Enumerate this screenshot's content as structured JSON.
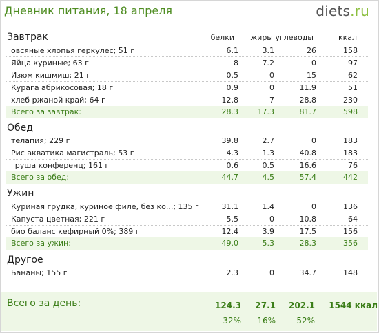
{
  "header": {
    "title": "Дневник питания, 18 апреля",
    "logo_main": "diets",
    "logo_dot": ".",
    "logo_tld": "ru"
  },
  "columns": {
    "protein": "белки",
    "fat": "жиры",
    "carbs": "углеводы",
    "kcal": "ккал"
  },
  "sections": [
    {
      "title": "Завтрак",
      "items": [
        {
          "name": "овсяные хлопья геркулес; 51 г",
          "protein": "6.1",
          "fat": "3.1",
          "carbs": "26",
          "kcal": "158"
        },
        {
          "name": "Яйца куриные; 63 г",
          "protein": "8",
          "fat": "7.2",
          "carbs": "0",
          "kcal": "97"
        },
        {
          "name": "Изюм кишмиш; 21 г",
          "protein": "0.5",
          "fat": "0",
          "carbs": "15",
          "kcal": "62"
        },
        {
          "name": "Курага абрикосовая; 18 г",
          "protein": "0.9",
          "fat": "0",
          "carbs": "11.9",
          "kcal": "51"
        },
        {
          "name": "хлеб ржаной край; 64 г",
          "protein": "12.8",
          "fat": "7",
          "carbs": "28.8",
          "kcal": "230"
        }
      ],
      "total": {
        "label": "Всего за завтрак:",
        "protein": "28.3",
        "fat": "17.3",
        "carbs": "81.7",
        "kcal": "598"
      }
    },
    {
      "title": "Обед",
      "items": [
        {
          "name": "телапия; 229 г",
          "protein": "39.8",
          "fat": "2.7",
          "carbs": "0",
          "kcal": "183"
        },
        {
          "name": "Рис акватика магистраль; 53 г",
          "protein": "4.3",
          "fat": "1.3",
          "carbs": "40.8",
          "kcal": "183"
        },
        {
          "name": "груша конференц; 161 г",
          "protein": "0.6",
          "fat": "0.5",
          "carbs": "16.6",
          "kcal": "76"
        }
      ],
      "total": {
        "label": "Всего за обед:",
        "protein": "44.7",
        "fat": "4.5",
        "carbs": "57.4",
        "kcal": "442"
      }
    },
    {
      "title": "Ужин",
      "items": [
        {
          "name": "Куриная грудка, куриное филе, без ко...; 135 г",
          "protein": "31.1",
          "fat": "1.4",
          "carbs": "0",
          "kcal": "136"
        },
        {
          "name": "Капуста цветная; 221 г",
          "protein": "5.5",
          "fat": "0",
          "carbs": "10.8",
          "kcal": "64"
        },
        {
          "name": "био баланс кефирный 0%; 389 г",
          "protein": "12.4",
          "fat": "3.9",
          "carbs": "17.5",
          "kcal": "156"
        }
      ],
      "total": {
        "label": "Всего за ужин:",
        "protein": "49.0",
        "fat": "5.3",
        "carbs": "28.3",
        "kcal": "356"
      }
    },
    {
      "title": "Другое",
      "items": [
        {
          "name": "Бананы; 155 г",
          "protein": "2.3",
          "fat": "0",
          "carbs": "34.7",
          "kcal": "148"
        }
      ]
    }
  ],
  "day_total": {
    "label": "Всего за день:",
    "protein": "124.3",
    "fat": "27.1",
    "carbs": "202.1",
    "kcal": "1544 ккал",
    "protein_pct": "32%",
    "fat_pct": "16%",
    "carbs_pct": "52%"
  }
}
